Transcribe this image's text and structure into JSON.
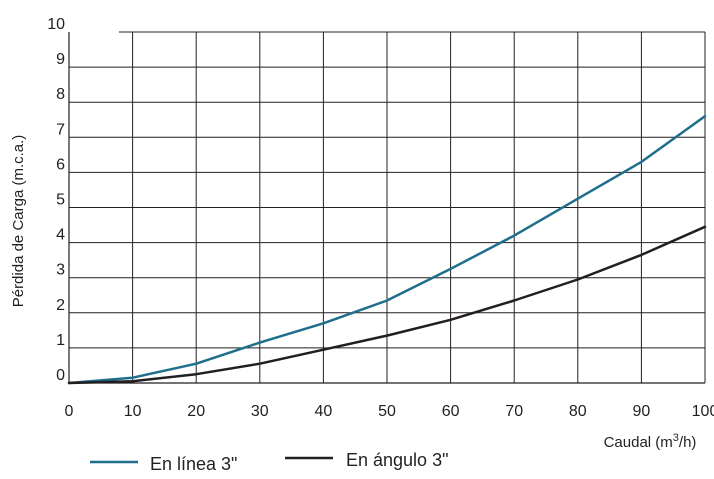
{
  "chart_data": {
    "type": "line",
    "title": "",
    "xlabel": "Caudal (m³/h)",
    "xlabel_parts": {
      "prefix": "Caudal (m",
      "sup": "3",
      "suffix": "/h)"
    },
    "ylabel": "Pérdida de Carga (m.c.a.)",
    "xlim": [
      0,
      100
    ],
    "ylim": [
      0,
      10
    ],
    "x_ticks": [
      "0",
      "10",
      "20",
      "30",
      "40",
      "50",
      "60",
      "70",
      "80",
      "90",
      "100"
    ],
    "y_ticks": [
      "0",
      "1",
      "2",
      "3",
      "4",
      "5",
      "6",
      "7",
      "8",
      "9",
      "10"
    ],
    "grid": true,
    "legend_position": "bottom",
    "series": [
      {
        "name": "En línea 3\"",
        "color": "#1f6e8c",
        "x": [
          0,
          10,
          20,
          30,
          40,
          50,
          60,
          70,
          80,
          90,
          100
        ],
        "values": [
          0.0,
          0.15,
          0.55,
          1.15,
          1.7,
          2.35,
          3.25,
          4.2,
          5.25,
          6.3,
          7.6
        ]
      },
      {
        "name": "En ángulo 3\"",
        "color": "#231f20",
        "x": [
          0,
          10,
          20,
          30,
          40,
          50,
          60,
          70,
          80,
          90,
          100
        ],
        "values": [
          0.0,
          0.05,
          0.25,
          0.55,
          0.95,
          1.35,
          1.8,
          2.35,
          2.95,
          3.65,
          4.45
        ]
      }
    ]
  }
}
